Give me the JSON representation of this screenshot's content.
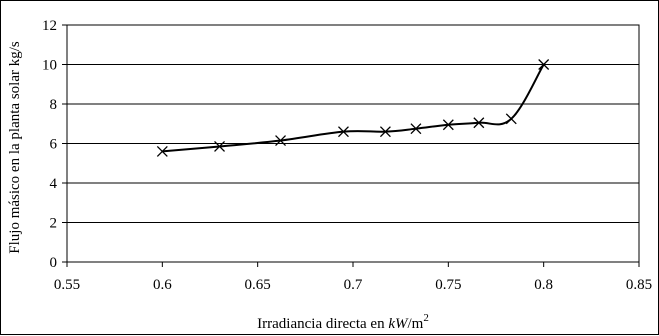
{
  "chart_data": {
    "type": "line",
    "title": "",
    "xlabel_prefix": "Irradiancia directa en ",
    "xlabel_unit_italic": "kW",
    "xlabel_unit_rest": "/m",
    "xlabel_superscript": "2",
    "ylabel": "Flujo másico en la planta solar kg/s",
    "xlim": [
      0.55,
      0.85
    ],
    "ylim": [
      0,
      12
    ],
    "x_ticks": [
      "0.55",
      "0.6",
      "0.65",
      "0.7",
      "0.75",
      "0.8",
      "0.85"
    ],
    "y_ticks": [
      "0",
      "2",
      "4",
      "6",
      "8",
      "10",
      "12"
    ],
    "grid": "horizontal",
    "marker": "x",
    "series": [
      {
        "x": [
          0.6,
          0.63,
          0.662,
          0.695,
          0.717,
          0.733,
          0.75,
          0.766,
          0.783,
          0.8
        ],
        "y": [
          5.6,
          5.85,
          6.15,
          6.6,
          6.6,
          6.75,
          6.95,
          7.05,
          7.25,
          10.0
        ]
      }
    ],
    "line_color": "#000000",
    "grid_color": "#000000"
  }
}
